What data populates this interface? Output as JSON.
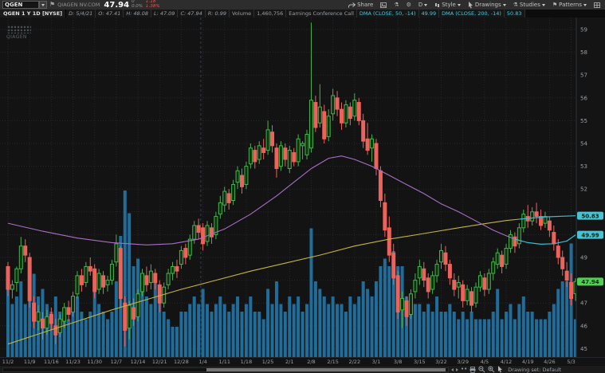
{
  "header": {
    "symbol": "QGEN",
    "company": "QIAGEN NV.COM",
    "last": "47.94",
    "change_value": "0",
    "change_percent": "0.0%",
    "ext_value": "↓.18",
    "ext_percent": "↓.38%"
  },
  "toolbar": {
    "share": "Share",
    "aggregation": "D",
    "style": "Style",
    "drawings": "Drawings",
    "studies": "Studies",
    "patterns": "Patterns"
  },
  "icons": {
    "flag": "⚑",
    "flask": "⚗",
    "gear": "⚙",
    "pattern_flag": "⚑",
    "dots": "••"
  },
  "legend": {
    "title": "QGEN 1 Y 1D [NYSE]",
    "fields": [
      {
        "label": "D:",
        "value": "5/4/21"
      },
      {
        "label": "O:",
        "value": "47.41"
      },
      {
        "label": "H:",
        "value": "48.08"
      },
      {
        "label": "L:",
        "value": "47.09"
      },
      {
        "label": "C:",
        "value": "47.94"
      },
      {
        "label": "R:",
        "value": "0.99"
      }
    ],
    "volume_label": "Volume",
    "volume_value": "1,460,756",
    "earnings": "Earnings Conference Call",
    "studies": [
      {
        "name": "DMA (CLOSE, 50, -14)",
        "value": "49.99"
      },
      {
        "name": "DMA (CLOSE, 200, -14)",
        "value": "50.83"
      }
    ]
  },
  "watermark": "QIAGEN",
  "footer": {
    "drawing_set": "Drawing set: Default"
  },
  "colors": {
    "up": "#45b34e",
    "up_fill": "#10300f",
    "down": "#ee625c",
    "volume": "#1f6d9a",
    "dma50": "#a96fc4",
    "dma200": "#c4b33e",
    "dma_ext": "#35bfd4",
    "badge_cyan": "#49c3d4",
    "badge_green": "#4fd052",
    "grid": "#24272b",
    "axis_text": "#9aa0a6"
  },
  "chart_data": {
    "type": "candlestick+volume",
    "title": "QGEN 1 Y 1D [NYSE]",
    "x_labels": [
      "11/2",
      "11/9",
      "11/16",
      "11/23",
      "11/30",
      "12/7",
      "12/14",
      "12/21",
      "12/28",
      "1/4",
      "1/11",
      "1/18",
      "1/25",
      "2/1",
      "2/8",
      "2/15",
      "2/22",
      "3/1",
      "3/8",
      "3/15",
      "3/22",
      "3/29",
      "4/5",
      "4/12",
      "4/19",
      "4/26",
      "5/3"
    ],
    "label_step": 5,
    "y_ticks": [
      45,
      46,
      47,
      48,
      49,
      50,
      51,
      52,
      53,
      54,
      55,
      56,
      57,
      58,
      59
    ],
    "y_ticks_hidden_by_badges": [
      48,
      50,
      51
    ],
    "ylim": [
      44.7,
      59.6
    ],
    "year_divider_index": 44.5,
    "candles": [
      [
        48.6,
        48.8,
        47.3,
        47.6,
        9
      ],
      [
        47.6,
        48.0,
        47.2,
        47.8,
        7
      ],
      [
        47.9,
        48.6,
        47.5,
        48.5,
        8
      ],
      [
        48.5,
        49.9,
        48.3,
        49.5,
        10
      ],
      [
        49.5,
        49.8,
        48.8,
        49.1,
        7
      ],
      [
        49.0,
        49.2,
        46.8,
        47.1,
        12
      ],
      [
        47.0,
        47.3,
        45.9,
        46.2,
        11
      ],
      [
        46.2,
        46.9,
        45.8,
        46.6,
        8
      ],
      [
        46.3,
        46.6,
        45.4,
        45.9,
        9
      ],
      [
        45.9,
        46.7,
        45.6,
        46.4,
        7
      ],
      [
        46.5,
        46.8,
        45.8,
        46.1,
        6
      ],
      [
        46.0,
        46.3,
        45.2,
        45.6,
        8
      ],
      [
        45.7,
        46.5,
        45.5,
        46.3,
        6
      ],
      [
        46.2,
        47.0,
        45.9,
        46.8,
        6
      ],
      [
        46.8,
        47.1,
        46.2,
        46.5,
        5
      ],
      [
        46.6,
        47.5,
        46.4,
        47.3,
        7
      ],
      [
        47.4,
        48.4,
        47.2,
        48.2,
        8
      ],
      [
        48.2,
        48.5,
        47.5,
        47.8,
        6
      ],
      [
        47.9,
        48.8,
        47.7,
        48.6,
        5
      ],
      [
        48.6,
        49.0,
        48.2,
        48.4,
        6
      ],
      [
        48.5,
        48.7,
        47.2,
        47.5,
        9
      ],
      [
        47.6,
        48.5,
        47.4,
        48.3,
        7
      ],
      [
        48.2,
        48.4,
        47.4,
        47.7,
        6
      ],
      [
        47.8,
        48.2,
        47.5,
        48.0,
        5
      ],
      [
        48.0,
        48.9,
        47.8,
        48.7,
        6
      ],
      [
        48.8,
        50.0,
        48.6,
        49.6,
        10
      ],
      [
        49.4,
        49.5,
        46.8,
        47.2,
        16
      ],
      [
        47.0,
        47.3,
        45.1,
        45.8,
        22
      ],
      [
        45.9,
        47.1,
        45.4,
        46.9,
        19
      ],
      [
        46.8,
        47.2,
        46.0,
        46.3,
        12
      ],
      [
        46.4,
        47.6,
        46.2,
        47.4,
        13
      ],
      [
        47.5,
        48.5,
        47.3,
        48.3,
        10
      ],
      [
        48.2,
        48.6,
        47.5,
        47.8,
        8
      ],
      [
        47.9,
        48.7,
        47.6,
        48.4,
        7
      ],
      [
        48.3,
        48.5,
        47.6,
        47.9,
        11
      ],
      [
        47.8,
        48.0,
        46.6,
        47.0,
        9
      ],
      [
        47.0,
        47.9,
        46.8,
        47.7,
        6
      ],
      [
        47.8,
        48.5,
        47.6,
        48.3,
        5
      ],
      [
        48.3,
        48.8,
        48.0,
        48.6,
        4
      ],
      [
        48.6,
        48.9,
        48.1,
        48.4,
        4
      ],
      [
        48.7,
        49.5,
        48.5,
        49.3,
        6
      ],
      [
        49.4,
        49.6,
        48.7,
        49.0,
        6
      ],
      [
        49.1,
        50.0,
        48.9,
        49.8,
        7
      ],
      [
        49.8,
        50.6,
        49.6,
        50.4,
        8
      ],
      [
        50.4,
        50.7,
        49.8,
        50.1,
        7
      ],
      [
        50.3,
        50.5,
        49.3,
        49.6,
        9
      ],
      [
        49.7,
        50.6,
        49.5,
        50.4,
        7
      ],
      [
        50.3,
        50.5,
        49.6,
        49.9,
        6
      ],
      [
        50.0,
        51.0,
        49.8,
        50.8,
        7
      ],
      [
        50.9,
        51.7,
        50.7,
        51.4,
        8
      ],
      [
        51.3,
        52.1,
        51.0,
        51.9,
        7
      ],
      [
        51.8,
        52.0,
        51.1,
        51.4,
        6
      ],
      [
        51.5,
        52.4,
        51.3,
        52.2,
        7
      ],
      [
        52.3,
        53.0,
        52.0,
        52.8,
        8
      ],
      [
        52.6,
        52.9,
        51.8,
        52.1,
        6
      ],
      [
        52.2,
        53.2,
        52.0,
        53.0,
        7
      ],
      [
        53.1,
        54.0,
        52.9,
        53.8,
        8
      ],
      [
        53.7,
        53.9,
        52.9,
        53.2,
        6
      ],
      [
        53.3,
        54.1,
        53.1,
        53.9,
        6
      ],
      [
        53.8,
        54.2,
        53.3,
        53.6,
        5
      ],
      [
        53.7,
        55.0,
        53.5,
        54.6,
        9
      ],
      [
        54.5,
        54.8,
        53.6,
        53.9,
        7
      ],
      [
        53.8,
        54.0,
        52.5,
        52.9,
        10
      ],
      [
        53.0,
        54.1,
        52.8,
        53.9,
        7
      ],
      [
        53.8,
        54.0,
        53.0,
        53.3,
        6
      ],
      [
        52.9,
        53.9,
        52.7,
        53.7,
        8
      ],
      [
        53.6,
        53.8,
        53.0,
        53.2,
        7
      ],
      [
        53.2,
        54.4,
        53.0,
        54.2,
        8
      ],
      [
        53.9,
        54.1,
        53.3,
        54.0,
        6
      ],
      [
        53.5,
        54.6,
        53.3,
        54.4,
        7
      ],
      [
        53.8,
        59.3,
        53.6,
        55.9,
        17
      ],
      [
        55.8,
        56.1,
        54.5,
        54.7,
        10
      ],
      [
        54.9,
        56.6,
        54.7,
        55.6,
        9
      ],
      [
        55.4,
        55.7,
        54.0,
        54.2,
        8
      ],
      [
        54.3,
        55.5,
        54.1,
        55.2,
        7
      ],
      [
        55.3,
        56.4,
        55.0,
        56.1,
        8
      ],
      [
        56.0,
        56.3,
        55.2,
        55.5,
        7
      ],
      [
        55.5,
        55.8,
        54.6,
        54.9,
        7
      ],
      [
        54.9,
        55.9,
        54.7,
        55.7,
        6
      ],
      [
        55.6,
        55.8,
        54.8,
        55.1,
        8
      ],
      [
        55.2,
        56.2,
        55.0,
        55.9,
        7
      ],
      [
        55.8,
        56.0,
        54.8,
        55.0,
        8
      ],
      [
        55.0,
        55.3,
        53.8,
        54.1,
        10
      ],
      [
        54.2,
        54.9,
        53.5,
        53.7,
        9
      ],
      [
        53.8,
        54.4,
        53.2,
        54.2,
        8
      ],
      [
        54.0,
        54.2,
        52.6,
        52.9,
        10
      ],
      [
        52.8,
        53.0,
        51.2,
        51.5,
        12
      ],
      [
        51.4,
        51.8,
        49.9,
        50.2,
        13
      ],
      [
        50.3,
        50.8,
        48.8,
        49.1,
        12
      ],
      [
        49.2,
        49.6,
        47.8,
        48.1,
        14
      ],
      [
        48.2,
        48.4,
        46.3,
        46.6,
        12
      ],
      [
        46.7,
        47.5,
        45.9,
        47.2,
        12
      ],
      [
        47.1,
        47.3,
        46.0,
        46.4,
        8
      ],
      [
        46.5,
        47.6,
        46.3,
        47.4,
        8
      ],
      [
        47.5,
        48.3,
        47.2,
        48.0,
        7
      ],
      [
        48.1,
        48.9,
        47.8,
        48.6,
        7
      ],
      [
        48.5,
        48.8,
        47.7,
        48.0,
        6
      ],
      [
        48.1,
        48.3,
        47.2,
        47.5,
        7
      ],
      [
        47.6,
        48.4,
        47.4,
        48.2,
        6
      ],
      [
        48.2,
        48.9,
        47.9,
        48.7,
        8
      ],
      [
        48.8,
        49.6,
        48.5,
        49.3,
        6
      ],
      [
        49.2,
        49.5,
        48.4,
        48.7,
        6
      ],
      [
        48.7,
        48.9,
        47.8,
        48.1,
        7
      ],
      [
        48.0,
        48.3,
        47.3,
        47.6,
        6
      ],
      [
        47.7,
        48.2,
        47.2,
        47.9,
        5
      ],
      [
        47.8,
        48.0,
        46.8,
        47.1,
        6
      ],
      [
        47.1,
        47.8,
        46.9,
        47.6,
        5
      ],
      [
        47.5,
        47.7,
        46.6,
        46.9,
        6
      ],
      [
        47.0,
        47.9,
        46.8,
        47.7,
        5
      ],
      [
        47.7,
        48.4,
        47.5,
        48.2,
        5
      ],
      [
        48.1,
        48.3,
        47.3,
        47.6,
        5
      ],
      [
        47.6,
        48.5,
        47.4,
        48.3,
        5
      ],
      [
        48.3,
        49.0,
        48.0,
        48.8,
        6
      ],
      [
        48.7,
        49.4,
        48.5,
        49.2,
        9
      ],
      [
        49.1,
        49.3,
        48.3,
        48.6,
        5
      ],
      [
        48.7,
        49.6,
        48.5,
        49.4,
        6
      ],
      [
        49.4,
        50.2,
        49.2,
        50.0,
        7
      ],
      [
        49.9,
        50.1,
        49.2,
        49.5,
        5
      ],
      [
        49.6,
        50.5,
        49.4,
        50.3,
        7
      ],
      [
        50.3,
        51.1,
        50.1,
        50.9,
        8
      ],
      [
        50.8,
        51.3,
        50.3,
        50.6,
        6
      ],
      [
        50.6,
        51.2,
        50.4,
        51.0,
        6
      ],
      [
        51.0,
        51.4,
        50.5,
        50.8,
        5
      ],
      [
        50.8,
        51.1,
        50.2,
        50.4,
        5
      ],
      [
        50.5,
        51.0,
        50.3,
        50.8,
        5
      ],
      [
        50.6,
        50.8,
        49.9,
        50.2,
        6
      ],
      [
        50.1,
        50.4,
        49.3,
        49.6,
        7
      ],
      [
        49.5,
        49.8,
        48.7,
        49.0,
        9
      ],
      [
        49.0,
        49.3,
        48.2,
        48.5,
        10
      ],
      [
        48.4,
        48.8,
        47.7,
        48.0,
        10
      ],
      [
        47.9,
        48.3,
        46.9,
        47.2,
        15
      ],
      [
        47.41,
        48.08,
        47.09,
        47.94,
        5
      ]
    ],
    "overlays": {
      "dma50": {
        "color": "#a96fc4",
        "points": [
          [
            0,
            50.5
          ],
          [
            8,
            50.15
          ],
          [
            16,
            49.85
          ],
          [
            24,
            49.65
          ],
          [
            32,
            49.55
          ],
          [
            38,
            49.6
          ],
          [
            44,
            49.8
          ],
          [
            50,
            50.25
          ],
          [
            56,
            50.9
          ],
          [
            62,
            51.7
          ],
          [
            66,
            52.3
          ],
          [
            70,
            52.9
          ],
          [
            74,
            53.35
          ],
          [
            77,
            53.45
          ],
          [
            80,
            53.3
          ],
          [
            84,
            53.0
          ],
          [
            88,
            52.6
          ],
          [
            92,
            52.2
          ],
          [
            96,
            51.8
          ],
          [
            100,
            51.35
          ],
          [
            104,
            51.0
          ],
          [
            108,
            50.6
          ],
          [
            112,
            50.2
          ],
          [
            115,
            49.95
          ],
          [
            117,
            49.8
          ]
        ]
      },
      "dma50_ext": {
        "color": "#35bfd4",
        "value": 49.99,
        "points": [
          [
            117,
            49.8
          ],
          [
            120,
            49.65
          ],
          [
            123,
            49.58
          ],
          [
            126,
            49.6
          ],
          [
            129,
            49.72
          ],
          [
            133,
            49.99
          ]
        ]
      },
      "dma200": {
        "color": "#c4b33e",
        "points": [
          [
            0,
            45.2
          ],
          [
            8,
            45.7
          ],
          [
            16,
            46.2
          ],
          [
            24,
            46.7
          ],
          [
            32,
            47.15
          ],
          [
            40,
            47.6
          ],
          [
            48,
            48.0
          ],
          [
            56,
            48.4
          ],
          [
            64,
            48.75
          ],
          [
            72,
            49.1
          ],
          [
            80,
            49.5
          ],
          [
            88,
            49.8
          ],
          [
            96,
            50.05
          ],
          [
            104,
            50.3
          ],
          [
            110,
            50.48
          ],
          [
            115,
            50.62
          ],
          [
            118,
            50.68
          ]
        ]
      },
      "dma200_ext": {
        "color": "#35bfd4",
        "value": 50.83,
        "points": [
          [
            118,
            50.68
          ],
          [
            124,
            50.78
          ],
          [
            133,
            50.83
          ]
        ]
      }
    },
    "price_badges": [
      {
        "price": 50.83,
        "label": "50.83",
        "color": "#49c3d4"
      },
      {
        "price": 49.99,
        "label": "49.99",
        "color": "#49c3d4"
      },
      {
        "price": 47.94,
        "label": "47.94",
        "color": "#4fd052"
      }
    ]
  }
}
